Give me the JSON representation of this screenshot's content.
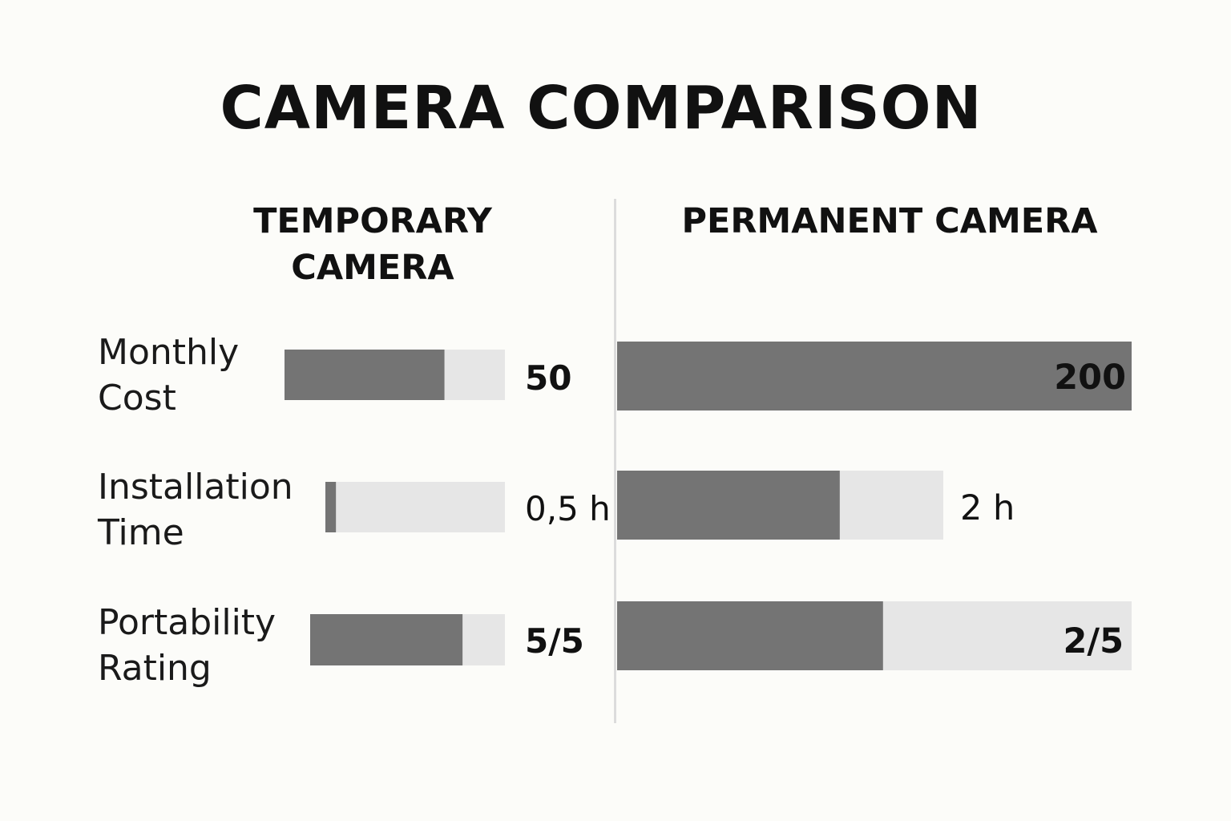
{
  "chart_data": {
    "type": "bar",
    "title": "CAMERA COMPARISON",
    "colors": {
      "fill": "#747474",
      "track": "#e6e6e6",
      "divider": "#dcdcdc",
      "background": "#fcfcf9"
    },
    "columns": [
      {
        "heading_lines": [
          "TEMPORARY",
          "CAMERA"
        ]
      },
      {
        "heading_lines": [
          "PERMANENT CAMERA"
        ]
      }
    ],
    "metrics": [
      {
        "label_lines": [
          "Monthly",
          "Cost"
        ],
        "temporary": {
          "value": 50,
          "label": "50"
        },
        "permanent": {
          "value": 200,
          "label": "200"
        }
      },
      {
        "label_lines": [
          "Installation",
          "Time"
        ],
        "temporary": {
          "value": 0.5,
          "label": "0,5 h"
        },
        "permanent": {
          "value": 2,
          "label": "2 h"
        }
      },
      {
        "label_lines": [
          "Portability",
          "Rating"
        ],
        "temporary": {
          "value": 5,
          "label": "5/5"
        },
        "permanent": {
          "value": 2,
          "label": "2/5"
        }
      }
    ]
  }
}
